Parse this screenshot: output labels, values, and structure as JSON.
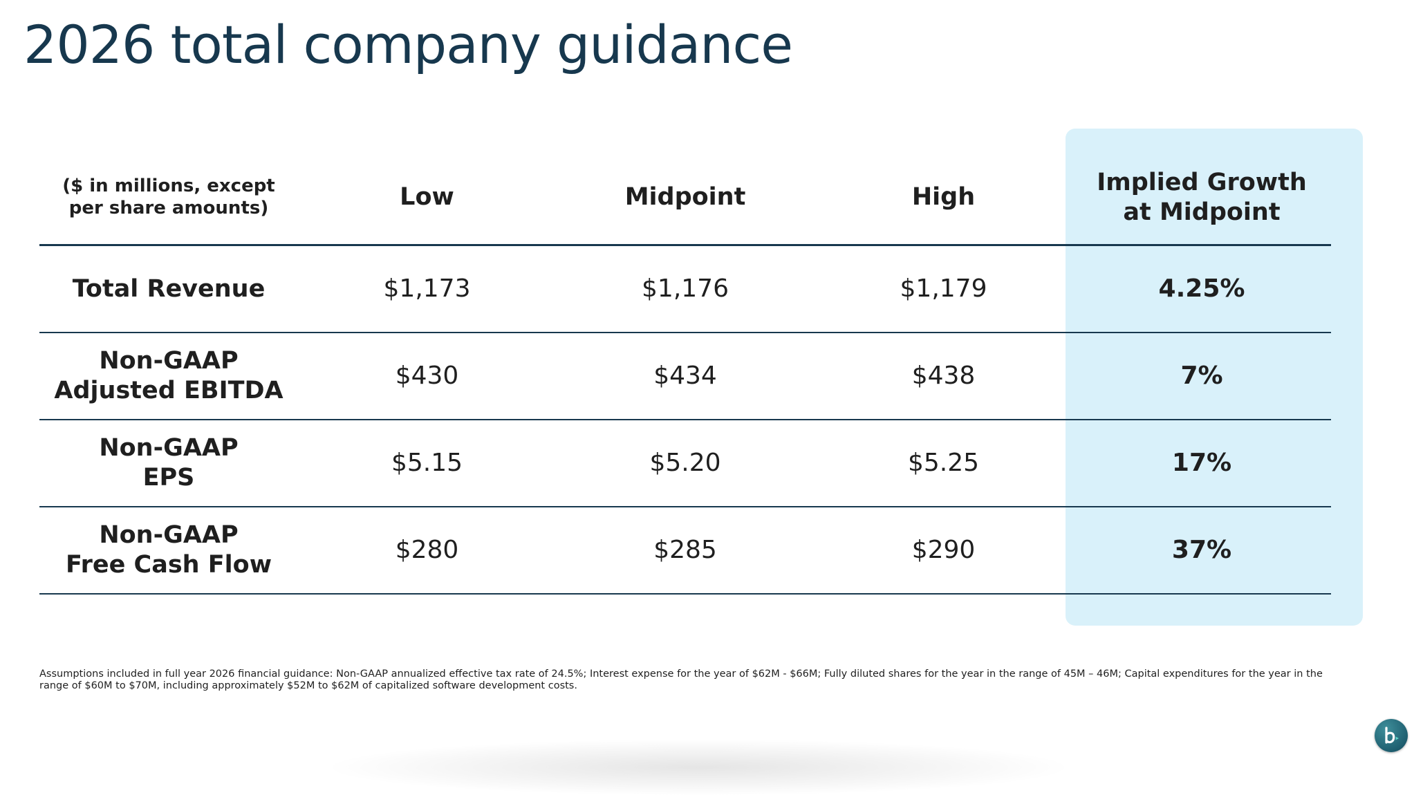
{
  "slide": {
    "title": "2026 total company guidance"
  },
  "table": {
    "header": {
      "label_note": "($ in millions, except per share amounts)",
      "low": "Low",
      "midpoint": "Midpoint",
      "high": "High",
      "implied_growth_line1": "Implied Growth",
      "implied_growth_line2": "at Midpoint"
    },
    "rows": [
      {
        "label_line1": "Total Revenue",
        "label_line2": "",
        "low": "$1,173",
        "midpoint": "$1,176",
        "high": "$1,179",
        "implied_growth": "4.25%"
      },
      {
        "label_line1": "Non-GAAP",
        "label_line2": "Adjusted EBITDA",
        "low": "$430",
        "midpoint": "$434",
        "high": "$438",
        "implied_growth": "7%"
      },
      {
        "label_line1": "Non-GAAP",
        "label_line2": "EPS",
        "low": "$5.15",
        "midpoint": "$5.20",
        "high": "$5.25",
        "implied_growth": "17%"
      },
      {
        "label_line1": "Non-GAAP",
        "label_line2": "Free Cash Flow",
        "low": "$280",
        "midpoint": "$285",
        "high": "$290",
        "implied_growth": "37%"
      }
    ]
  },
  "footnote": "Assumptions included in full year 2026 financial guidance: Non-GAAP annualized effective tax rate of 24.5%; Interest expense for the year of $62M - $66M; Fully diluted shares for the year in the range of 45M – 46M; Capital expenditures for the year in the range of $60M to $70M, including approximately $52M to $62M of capitalized software development costs.",
  "colors": {
    "title": "#17384e",
    "rule": "#17384e",
    "highlight_panel": "#d9f1fa",
    "logo": "#1f5f70"
  },
  "icons": {
    "brand": "b-logo-icon"
  }
}
